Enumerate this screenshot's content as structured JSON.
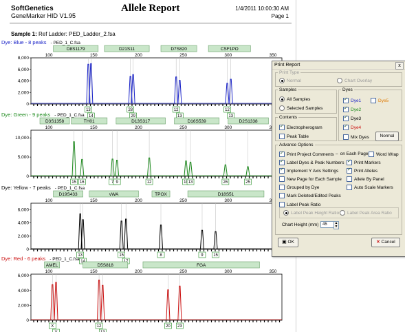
{
  "header": {
    "company": "SoftGenetics",
    "product": "GeneMarker HID V1.95",
    "title": "Allele Report",
    "datetime": "1/4/2011 10:00:30 AM",
    "page": "Page 1"
  },
  "sample": {
    "label": "Sample 1:",
    "ladder": "Ref Ladder: PED_Ladder_2.fsa"
  },
  "panels": [
    {
      "id": "blue",
      "dye_label": "Dye: Blue - 8 peaks",
      "file": "PED_1_C.fsa",
      "color": "#1a23c8",
      "markers": [
        "D8S1179",
        "D21S11",
        "D7S820",
        "CSF1PO"
      ],
      "x_ticks": [
        "100",
        "150",
        "200",
        "250",
        "300",
        "350"
      ],
      "y_ticks": [
        "0",
        "2,000",
        "4,000",
        "6,000",
        "8,000"
      ],
      "ymax": 8000,
      "peaks": [
        [
          144,
          6900
        ],
        [
          147,
          7000
        ],
        [
          191,
          4800
        ],
        [
          194,
          5100
        ],
        [
          242,
          4700
        ],
        [
          246,
          4100
        ],
        [
          299,
          3600
        ],
        [
          303,
          4300
        ]
      ],
      "upper_labels": [
        "13",
        "28",
        "12",
        "12"
      ],
      "lower_labels": [
        "14",
        "29",
        "13",
        "13"
      ]
    },
    {
      "id": "green",
      "dye_label": "Dye: Green - 9 peaks",
      "file": "PED_1_C.fsa",
      "color": "#1d8a1d",
      "markers": [
        "D3S1358",
        "TH01",
        "D13S317",
        "D16S539",
        "D2S1338"
      ],
      "x_ticks": [
        "100",
        "150",
        "200",
        "250",
        "300",
        "350"
      ],
      "y_ticks": [
        "0",
        "5,000",
        "10,000"
      ],
      "ymax": 12000,
      "peaks": [
        [
          128,
          9000
        ],
        [
          137,
          4400
        ],
        [
          171,
          4500
        ],
        [
          176,
          4200
        ],
        [
          212,
          4800
        ],
        [
          253,
          4000
        ],
        [
          258,
          3700
        ],
        [
          297,
          3000
        ],
        [
          322,
          2500
        ]
      ],
      "upper_labels": [
        "15",
        "16",
        "7",
        "9",
        "12",
        "10",
        "13",
        "26",
        "25"
      ],
      "lower_labels": []
    },
    {
      "id": "yellow",
      "dye_label": "Dye: Yellow - 7 peaks",
      "file": "PED_1_C.fsa",
      "color": "#000000",
      "markers": [
        "D19S433",
        "vWA",
        "TPOX",
        "D18S51"
      ],
      "x_ticks": [
        "100",
        "150",
        "200",
        "250",
        "300",
        "350"
      ],
      "y_ticks": [
        "0",
        "2,000",
        "4,000",
        "6,000"
      ],
      "ymax": 7000,
      "peaks": [
        [
          135,
          5400
        ],
        [
          138,
          4500
        ],
        [
          181,
          4300
        ],
        [
          186,
          4600
        ],
        [
          225,
          3700
        ],
        [
          271,
          2900
        ],
        [
          286,
          2700
        ]
      ],
      "upper_labels": [
        "13",
        "15",
        "8",
        "9",
        "15"
      ],
      "lower_labels": [
        "14",
        "17"
      ]
    },
    {
      "id": "red",
      "dye_label": "Dye: Red - 6 peaks",
      "file": "PED_1_C.fsa",
      "color": "#cc1111",
      "markers": [
        "AMEL",
        "D5S818",
        "FGA"
      ],
      "x_ticks": [
        "100",
        "150",
        "200",
        "250",
        "300",
        "350"
      ],
      "y_ticks": [
        "0",
        "2,000",
        "4,000",
        "6,000"
      ],
      "ymax": 6200,
      "peaks": [
        [
          104,
          4800
        ],
        [
          108,
          5100
        ],
        [
          156,
          5400
        ],
        [
          160,
          4700
        ],
        [
          233,
          4100
        ],
        [
          246,
          4600
        ]
      ],
      "upper_labels": [
        "X",
        "12",
        "20",
        "23"
      ],
      "lower_labels": [
        "Y",
        "13"
      ]
    }
  ],
  "dialog": {
    "title": "Print Report",
    "close": "x",
    "print_type": {
      "legend": "Print Type",
      "normal": "Normal",
      "overlay": "Chart Overlay"
    },
    "samples": {
      "legend": "Samples",
      "all": "All Samples",
      "selected": "Selected Samples"
    },
    "contents": {
      "legend": "Contents",
      "electro": "Electropherogram",
      "peak_table": "Peak Table"
    },
    "dyes": {
      "legend": "Dyes",
      "dye1": "Dye1",
      "dye2": "Dye2",
      "dye3": "Dye3",
      "dye4": "Dye4",
      "dye5": "Dye5",
      "mix": "Mix Dyes",
      "normal_btn": "Normal"
    },
    "advance": {
      "legend": "Advance Options",
      "o1": "Print Project Comments",
      "o1b": "on Each Page",
      "o1c": "Word Wrap",
      "o2": "Label Dyes & Peak Numbers",
      "o2b": "Print Markers",
      "o3": "Implement Y Axis Settings",
      "o3b": "Print Alleles",
      "o4": "New Page for Each Sample",
      "o4b": "Allele By Panel",
      "o5": "Grouped by Dye",
      "o5b": "Auto Scale Markers",
      "o6": "Mark Deleted/Edited Peaks",
      "o7": "Label Peak Ratio",
      "r1": "Label Peak Height Ratio",
      "r2": "Label Peak Area Ratio",
      "chart_height_label": "Chart Height (mm)",
      "chart_height_value": "45"
    },
    "ok": "OK",
    "cancel": "Cancel"
  }
}
